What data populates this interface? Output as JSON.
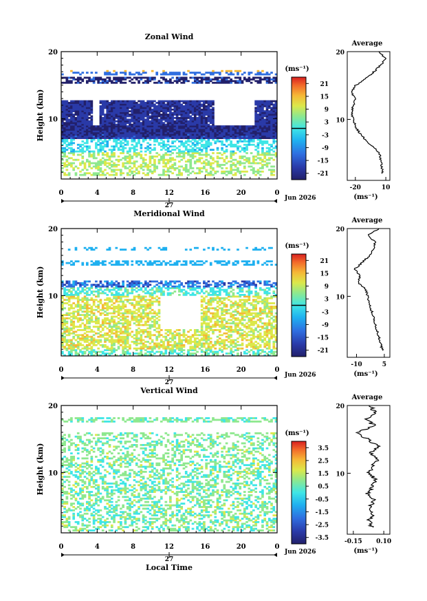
{
  "chart_data": [
    {
      "type": "heatmap",
      "title": "Zonal Wind",
      "ylabel": "Height (km)",
      "unit": "(ms⁻¹)",
      "x_ticks": [
        "0",
        "4",
        "8",
        "12",
        "16",
        "20",
        "0"
      ],
      "y_ticks": [
        "20",
        "10"
      ],
      "xlim": [
        0,
        24
      ],
      "ylim": [
        1,
        20
      ],
      "day_label": "27",
      "date_label": "Jun 2026",
      "colorbar": {
        "ticks": [
          "21",
          "15",
          "9",
          "3",
          "-3",
          "-9",
          "-15",
          "-21"
        ],
        "range": [
          -24,
          24
        ],
        "zero_line": 0
      },
      "profile": {
        "title": "Average",
        "xlabel": "(ms⁻¹)",
        "x_ticks": [
          "-20",
          "10"
        ],
        "xlim": [
          -28,
          14
        ],
        "y_ticks": [
          "20",
          "10"
        ],
        "heights": [
          2,
          3,
          4,
          5,
          6,
          7,
          8,
          9,
          10,
          11,
          12,
          13,
          14,
          15,
          16,
          17,
          18,
          19,
          20
        ],
        "values": [
          7,
          6,
          5,
          4,
          -3,
          -10,
          -16,
          -20,
          -22,
          -24,
          -22,
          -20,
          -24,
          -20,
          -10,
          -2,
          5,
          10,
          3
        ]
      }
    },
    {
      "type": "heatmap",
      "title": "Meridional Wind",
      "ylabel": "Height (km)",
      "unit": "(ms⁻¹)",
      "x_ticks": [
        "0",
        "4",
        "8",
        "12",
        "16",
        "20",
        "0"
      ],
      "y_ticks": [
        "20",
        "10"
      ],
      "xlim": [
        0,
        24
      ],
      "ylim": [
        1,
        20
      ],
      "day_label": "27",
      "date_label": "Jun 2026",
      "colorbar": {
        "ticks": [
          "21",
          "15",
          "9",
          "3",
          "-3",
          "-9",
          "-15",
          "-21"
        ],
        "range": [
          -24,
          24
        ],
        "zero_line": 0
      },
      "profile": {
        "title": "Average",
        "xlabel": "(ms⁻¹)",
        "x_ticks": [
          "-10",
          "5"
        ],
        "xlim": [
          -15,
          8
        ],
        "y_ticks": [
          "20",
          "10"
        ],
        "heights": [
          2,
          3,
          4,
          5,
          6,
          7,
          8,
          9,
          10,
          11,
          12,
          13,
          14,
          15,
          16,
          17,
          18,
          19,
          20
        ],
        "values": [
          4,
          3,
          2,
          1,
          0,
          -1,
          -2,
          -3,
          -4,
          -5,
          -9,
          -8,
          -11,
          -7,
          -3,
          -1,
          0,
          -4,
          2
        ]
      }
    },
    {
      "type": "heatmap",
      "title": "Vertical Wind",
      "ylabel": "Height (km)",
      "xlabel": "Local Time",
      "unit": "(ms⁻¹)",
      "x_ticks": [
        "0",
        "4",
        "8",
        "12",
        "16",
        "20",
        "0"
      ],
      "y_ticks": [
        "20",
        "10"
      ],
      "xlim": [
        0,
        24
      ],
      "ylim": [
        1,
        20
      ],
      "day_label": "27",
      "date_label": "Jun 2026",
      "colorbar": {
        "ticks": [
          "3.5",
          "2.5",
          "1.5",
          "0.5",
          "-0.5",
          "-1.5",
          "-2.5",
          "-3.5"
        ],
        "range": [
          -4,
          4
        ]
      },
      "profile": {
        "title": "Average",
        "xlabel": "(ms⁻¹)",
        "x_ticks": [
          "-0.15",
          "0.10"
        ],
        "xlim": [
          -0.2,
          0.15
        ],
        "y_ticks": [
          "20",
          "10"
        ],
        "heights": [
          2,
          3,
          4,
          5,
          6,
          7,
          8,
          9,
          10,
          11,
          12,
          13,
          14,
          15,
          16,
          17,
          18,
          19,
          20
        ],
        "values": [
          0.0,
          -0.02,
          0.01,
          -0.01,
          0.02,
          -0.03,
          0.0,
          0.03,
          -0.02,
          0.01,
          0.04,
          -0.01,
          0.05,
          -0.03,
          -0.12,
          0.02,
          -0.04,
          0.03,
          -0.02
        ]
      }
    }
  ]
}
